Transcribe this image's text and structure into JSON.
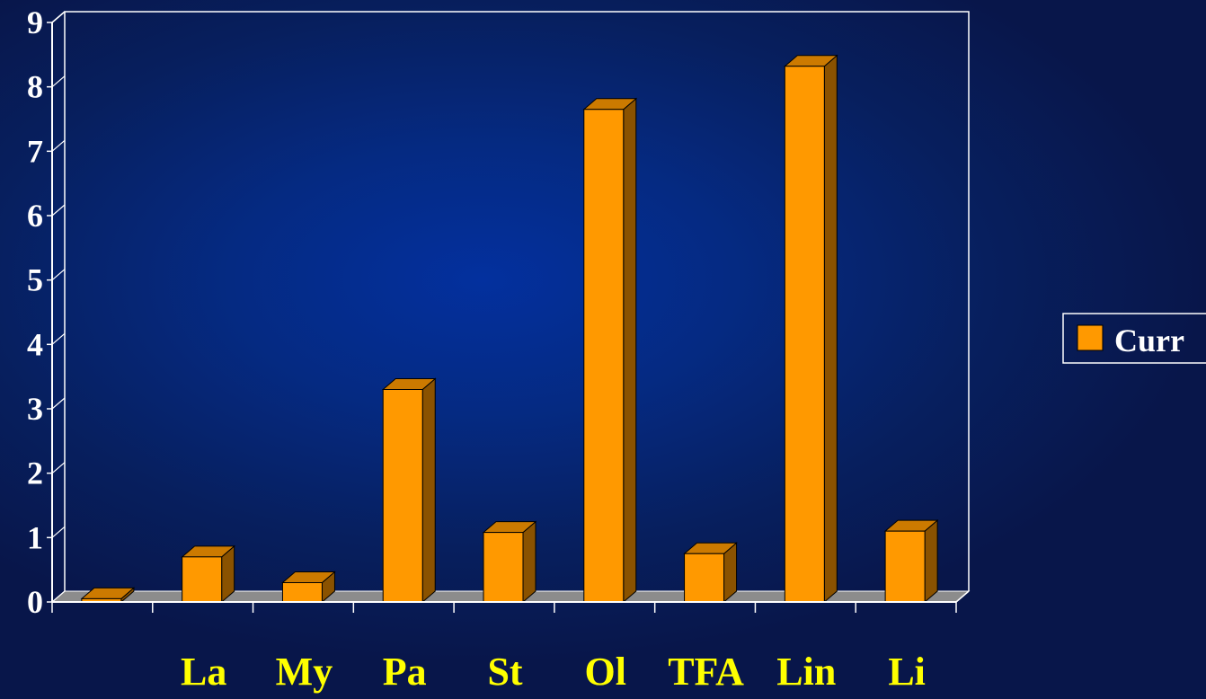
{
  "chart_data": {
    "type": "bar",
    "categories": [
      "",
      "La",
      "My",
      "Pa",
      "St",
      "Ol",
      "TFA",
      "Lin",
      "Li"
    ],
    "series": [
      {
        "name": "Curr",
        "values": [
          0.05,
          0.7,
          0.3,
          3.3,
          1.08,
          7.65,
          0.75,
          8.32,
          1.1
        ]
      }
    ],
    "yticks": [
      "0",
      "1",
      "2",
      "3",
      "4",
      "5",
      "6",
      "7",
      "8",
      "9"
    ],
    "ylim": [
      0,
      9
    ],
    "xlabel": "",
    "ylabel": "",
    "title": "",
    "legend": {
      "placement": "right",
      "label": "Curr"
    },
    "grid": false,
    "three_d": true,
    "colors": {
      "bar_front": "#ff9900",
      "bar_side": "#8a5200",
      "bar_top": "#cc7a00",
      "floor": "#8c8c8c",
      "axis": "#ffffff",
      "tick_label": "#ffffff",
      "category_label": "#ffff00",
      "legend_text": "#ffffff"
    }
  }
}
